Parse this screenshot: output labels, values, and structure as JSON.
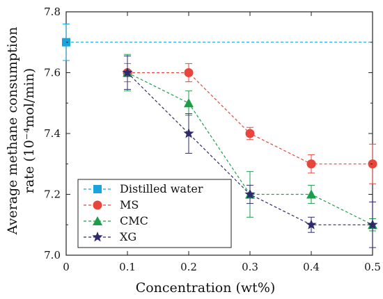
{
  "chart_data": {
    "type": "line",
    "xlabel": "Concentration (wt%)",
    "ylabel_line1": "Average methane consumption",
    "ylabel_line2": "rate (10⁻⁴mol/min)",
    "xlim": [
      0,
      0.5
    ],
    "ylim": [
      7.0,
      7.8
    ],
    "x_ticks": [
      "0",
      "0.1",
      "0.2",
      "0.3",
      "0.4",
      "0.5"
    ],
    "y_ticks": [
      "7.0",
      "7.2",
      "7.4",
      "7.6",
      "7.8"
    ],
    "grid": false,
    "legend_position": "bottom-left",
    "series": [
      {
        "name": "Distilled water",
        "color": "#1aa3dc",
        "marker": "square",
        "x": [
          0,
          0.5
        ],
        "y": [
          7.7,
          7.7
        ],
        "err": [
          0.06,
          0
        ],
        "markers_at": [
          0
        ]
      },
      {
        "name": "MS",
        "color": "#e8453c",
        "marker": "circle",
        "x": [
          0.1,
          0.2,
          0.3,
          0.4,
          0.5
        ],
        "y": [
          7.6,
          7.6,
          7.4,
          7.3,
          7.3
        ],
        "err": [
          0.03,
          0.03,
          0.02,
          0.03,
          0.065
        ]
      },
      {
        "name": "CMC",
        "color": "#1a9e4a",
        "marker": "triangle",
        "x": [
          0.1,
          0.2,
          0.3,
          0.4,
          0.5
        ],
        "y": [
          7.6,
          7.5,
          7.2,
          7.2,
          7.1
        ],
        "err": [
          0.06,
          0.04,
          0.075,
          0.03,
          0.02
        ]
      },
      {
        "name": "XG",
        "color": "#2e2a6e",
        "marker": "star",
        "x": [
          0.1,
          0.2,
          0.3,
          0.4,
          0.5
        ],
        "y": [
          7.6,
          7.4,
          7.2,
          7.1,
          7.1
        ],
        "err": [
          0.055,
          0.065,
          0.03,
          0.025,
          0.075
        ]
      }
    ]
  }
}
